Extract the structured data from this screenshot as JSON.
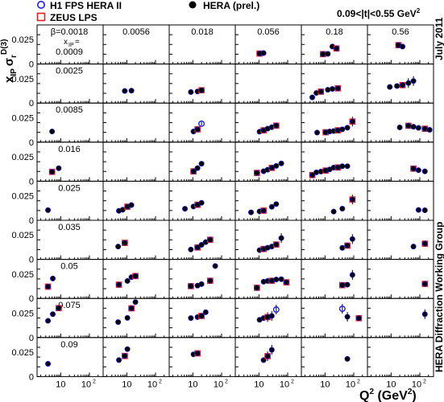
{
  "chart_data": {
    "type": "scatter",
    "title": "",
    "legend": [
      {
        "name": "H1 FPS HERA II",
        "marker": "open-circle",
        "color": "#1e1ee6"
      },
      {
        "name": "ZEUS LPS",
        "marker": "open-square",
        "color": "#e61e1e"
      },
      {
        "name": "HERA (prel.)",
        "marker": "filled-circle",
        "color": "#000000"
      }
    ],
    "t_range_label": "0.09<|t|<0.55 GeV",
    "t_range_sup": "2",
    "date_label": "July 2011",
    "group_label": "HERA Diffraction Working Group",
    "ylabel": {
      "main": "x",
      "sub1": "IP",
      "sigma": "σ",
      "sub2": "r",
      "sup": "D(3)"
    },
    "xlabel": {
      "main": "Q",
      "sup": "2",
      "unit": " (GeV",
      "unit_sup": "2",
      "close": ")"
    },
    "x_scale": "log",
    "x_range": [
      1.5,
      300
    ],
    "x_ticks": [
      "10",
      "10"
    ],
    "x_tick_sup": "2",
    "y_range": [
      0,
      0.04
    ],
    "y_ticks": [
      "0",
      "0.025"
    ],
    "betas": [
      "β=0.0018",
      "0.0056",
      "0.018",
      "0.056",
      "0.18",
      "0.56"
    ],
    "xip_label": "x",
    "xip_sub": "IP",
    "xip_eq": "=",
    "xip_values": [
      "0.0009",
      "0.0025",
      "0.0085",
      "0.016",
      "0.025",
      "0.035",
      "0.05",
      "0.075",
      "0.09"
    ],
    "cells": [
      [
        [],
        [],
        [],
        [
          [
            10.5,
            0.0107
          ],
          [
            14.5,
            0.0112
          ]
        ],
        [
          [
            8.5,
            0.0101
          ],
          [
            12.5,
            0.0104
          ],
          [
            18,
            0.0179
          ],
          [
            25,
            0.0159
          ]
        ],
        [
          [
            18,
            0.0193
          ],
          [
            25,
            0.0179
          ]
        ]
      ],
      [
        [],
        [
          [
            8.5,
            0.0124
          ],
          [
            14.5,
            0.0127
          ]
        ],
        [
          [
            8.5,
            0.0113
          ],
          [
            14.5,
            0.0119
          ],
          [
            20,
            0.0131
          ]
        ],
        [],
        [
          [
            3.6,
            0.0058
          ],
          [
            5,
            0.0104
          ],
          [
            7.2,
            0.0117
          ],
          [
            12.5,
            0.0136
          ],
          [
            18,
            0.0145
          ],
          [
            28,
            0.0151
          ]
        ],
        [
          [
            9,
            0.0165
          ],
          [
            16,
            0.0175
          ],
          [
            25,
            0.0184
          ],
          [
            40,
            0.0205
          ],
          [
            60,
            0.0226
          ]
        ]
      ],
      [
        [
          [
            5,
            0.0109
          ]
        ],
        [],
        [
          [
            10.5,
            0.0109
          ],
          [
            14.5,
            0.0131
          ],
          [
            20,
            0.0189
          ]
        ],
        [
          [
            10.5,
            0.0107
          ],
          [
            14.5,
            0.0121
          ],
          [
            20,
            0.0138
          ],
          [
            28,
            0.0153
          ],
          [
            40,
            0.0169
          ]
        ],
        [
          [
            5.3,
            0.0098
          ],
          [
            10.5,
            0.0101
          ],
          [
            14.5,
            0.0109
          ],
          [
            20,
            0.0114
          ],
          [
            28,
            0.0121
          ],
          [
            40,
            0.0131
          ],
          [
            60,
            0.0148
          ],
          [
            90,
            0.0211
          ]
        ],
        [
          [
            20,
            0.0151
          ],
          [
            40,
            0.0168
          ],
          [
            60,
            0.0158
          ],
          [
            90,
            0.0146
          ],
          [
            150,
            0.0137
          ],
          [
            220,
            0.0126
          ]
        ]
      ],
      [
        [
          [
            5,
            0.0096
          ],
          [
            8.5,
            0.0133
          ]
        ],
        [],
        [
          [
            10.5,
            0.0101
          ],
          [
            14.5,
            0.0134
          ],
          [
            20,
            0.0179
          ]
        ],
        [
          [
            8.5,
            0.0085
          ],
          [
            14.5,
            0.0102
          ],
          [
            20,
            0.0118
          ],
          [
            28,
            0.0137
          ],
          [
            40,
            0.0157
          ],
          [
            60,
            0.0182
          ]
        ],
        [
          [
            3.6,
            0.0063
          ],
          [
            5,
            0.0091
          ],
          [
            7.2,
            0.0099
          ],
          [
            10.5,
            0.0109
          ],
          [
            14.5,
            0.0121
          ],
          [
            20,
            0.0139
          ],
          [
            28,
            0.0141
          ],
          [
            40,
            0.0153
          ],
          [
            60,
            0.0154
          ]
        ],
        [
          [
            60,
            0.0129
          ],
          [
            90,
            0.0113
          ],
          [
            150,
            0.0101
          ]
        ]
      ],
      [
        [
          [
            3.6,
            0.0104
          ]
        ],
        [
          [
            5.3,
            0.0097
          ],
          [
            7.2,
            0.0108
          ],
          [
            10.5,
            0.0139
          ],
          [
            14.5,
            0.0156
          ]
        ],
        [
          [
            5.3,
            0.0118
          ],
          [
            10.5,
            0.0141
          ],
          [
            14.5,
            0.0159
          ],
          [
            20,
            0.0179
          ]
        ],
        [
          [
            5.3,
            0.0081
          ],
          [
            10.5,
            0.0091
          ],
          [
            14.5,
            0.0099
          ],
          [
            28,
            0.0138
          ],
          [
            40,
            0.0166
          ]
        ],
        [
          [
            20,
            0.0089
          ],
          [
            40,
            0.0119
          ],
          [
            90,
            0.0213
          ]
        ],
        [
          [
            90,
            0.0106
          ],
          [
            150,
            0.0103
          ]
        ]
      ],
      [
        [],
        [
          [
            5,
            0.0131
          ],
          [
            8.5,
            0.0169
          ]
        ],
        [
          [
            8.5,
            0.0101
          ],
          [
            14.5,
            0.0122
          ],
          [
            20,
            0.0149
          ],
          [
            28,
            0.0177
          ],
          [
            40,
            0.0201
          ]
        ],
        [
          [
            10.5,
            0.0094
          ],
          [
            14.5,
            0.0106
          ],
          [
            20,
            0.0119
          ],
          [
            28,
            0.0131
          ],
          [
            40,
            0.0152
          ],
          [
            60,
            0.0218
          ]
        ],
        [
          [
            40,
            0.0118
          ],
          [
            60,
            0.0141
          ],
          [
            90,
            0.0208
          ]
        ],
        [
          [
            60,
            0.0131
          ],
          [
            150,
            0.0161
          ]
        ]
      ],
      [
        [
          [
            3.6,
            0.0121
          ],
          [
            5.3,
            0.0204
          ]
        ],
        [
          [
            5.3,
            0.0141
          ],
          [
            10.5,
            0.0179
          ],
          [
            14.5,
            0.0218
          ],
          [
            20,
            0.0229
          ]
        ],
        [
          [
            8.5,
            0.0126
          ],
          [
            14.5,
            0.0131
          ],
          [
            20,
            0.0147
          ],
          [
            40,
            0.0181
          ],
          [
            60,
            0.0332
          ]
        ],
        [
          [
            8.5,
            0.0109
          ],
          [
            14.5,
            0.0171
          ],
          [
            20,
            0.0179
          ],
          [
            28,
            0.0181
          ],
          [
            40,
            0.0194
          ],
          [
            60,
            0.0197
          ],
          [
            90,
            0.0165
          ]
        ],
        [
          [
            40,
            0.0136
          ],
          [
            60,
            0.0141
          ],
          [
            90,
            0.0241
          ]
        ],
        [
          [
            150,
            0.0149
          ]
        ]
      ],
      [
        [
          [
            3.6,
            0.0171
          ],
          [
            5.3,
            0.0239
          ],
          [
            8.5,
            0.0301
          ]
        ],
        [
          [
            5,
            0.0158
          ],
          [
            10.5,
            0.0201
          ],
          [
            14.5,
            0.0299
          ],
          [
            20,
            0.0363
          ]
        ],
        [
          [
            8.5,
            0.0199
          ],
          [
            14.5,
            0.0209
          ],
          [
            20,
            0.0221
          ],
          [
            28,
            0.0259
          ]
        ],
        [
          [
            10.5,
            0.0181
          ],
          [
            14.5,
            0.0199
          ],
          [
            20,
            0.0209
          ],
          [
            28,
            0.0221
          ],
          [
            40,
            0.0286
          ]
        ],
        [
          [
            40,
            0.0294
          ],
          [
            60,
            0.0212
          ],
          [
            150,
            0.0198
          ]
        ],
        [
          [
            150,
            0.0239
          ]
        ]
      ],
      [
        [
          [
            3.6,
            0.0131
          ]
        ],
        [
          [
            5.3,
            0.0169
          ],
          [
            8.5,
            0.0211
          ],
          [
            10.5,
            0.0281
          ]
        ],
        [
          [
            10.5,
            0.0228
          ],
          [
            14.5,
            0.0238
          ]
        ],
        [
          [
            14.5,
            0.0169
          ],
          [
            20,
            0.0209
          ],
          [
            28,
            0.0274
          ]
        ],
        [
          [
            60,
            0.0181
          ]
        ],
        []
      ]
    ]
  }
}
